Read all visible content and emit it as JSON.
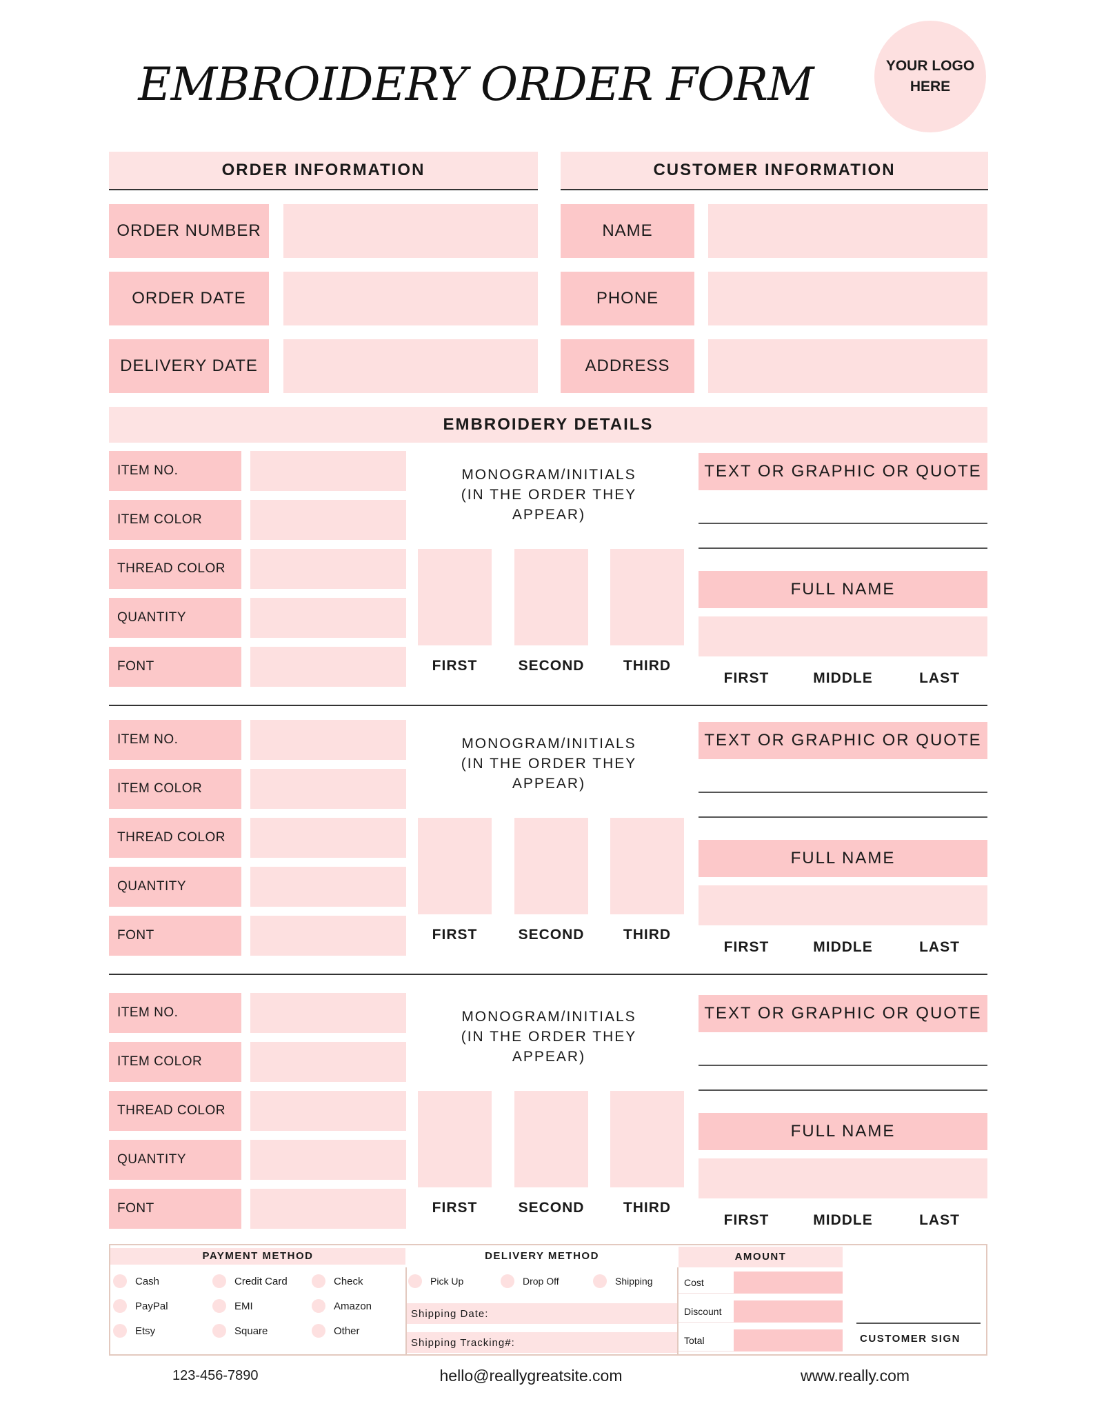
{
  "header": {
    "title": "EMBROIDERY ORDER FORM",
    "logo": "YOUR LOGO\nHERE"
  },
  "order_info": {
    "heading": "ORDER INFORMATION",
    "rows": [
      {
        "label": "ORDER NUMBER",
        "value": ""
      },
      {
        "label": "ORDER DATE",
        "value": ""
      },
      {
        "label": "DELIVERY DATE",
        "value": ""
      }
    ]
  },
  "customer_info": {
    "heading": "CUSTOMER INFORMATION",
    "rows": [
      {
        "label": "NAME",
        "value": ""
      },
      {
        "label": "PHONE",
        "value": ""
      },
      {
        "label": "ADDRESS",
        "value": ""
      }
    ]
  },
  "details": {
    "heading": "EMBROIDERY DETAILS",
    "item_labels": [
      "ITEM NO.",
      "ITEM COLOR",
      "THREAD COLOR",
      "QUANTITY",
      "FONT"
    ],
    "monogram_title": "MONOGRAM/INITIALS\n(IN THE ORDER THEY\nAPPEAR)",
    "monogram_labels": [
      "FIRST",
      "SECOND",
      "THIRD"
    ],
    "quote_label": "TEXT OR GRAPHIC OR QUOTE",
    "fullname_label": "FULL NAME",
    "name_parts": [
      "FIRST",
      "MIDDLE",
      "LAST"
    ]
  },
  "payment": {
    "heading": "PAYMENT METHOD",
    "options": [
      "Cash",
      "Credit Card",
      "Check",
      "PayPal",
      "EMI",
      "Amazon",
      "Etsy",
      "Square",
      "Other"
    ]
  },
  "delivery": {
    "heading": "DELIVERY METHOD",
    "options": [
      "Pick Up",
      "Drop Off",
      "Shipping"
    ],
    "shipping_date": "Shipping Date:",
    "tracking": "Shipping Tracking#:"
  },
  "amount": {
    "heading": "AMOUNT",
    "rows": [
      "Cost",
      "Discount",
      "Total"
    ]
  },
  "signature": "CUSTOMER SIGN",
  "footer": {
    "phone": "123-456-7890",
    "email": "hello@reallygreatsite.com",
    "website": "www.really.com"
  },
  "colors": {
    "pink_light": "#fde0e0",
    "pink_medium": "#fcc8c9",
    "border_tan": "#e3c9bf"
  }
}
